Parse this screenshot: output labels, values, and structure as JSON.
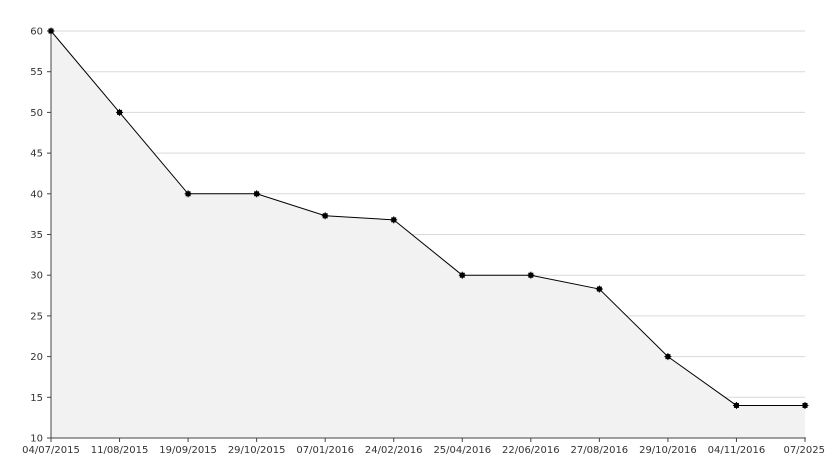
{
  "chart_data": {
    "type": "area",
    "title": "",
    "xlabel": "",
    "ylabel": "",
    "ylim": [
      10,
      60
    ],
    "yticks": [
      10,
      15,
      20,
      25,
      30,
      35,
      40,
      45,
      50,
      55,
      60
    ],
    "xtick_labels": [
      "04/07/2015",
      "11/08/2015",
      "19/09/2015",
      "29/10/2015",
      "07/01/2016",
      "24/02/2016",
      "25/04/2016",
      "22/06/2016",
      "27/08/2016",
      "29/10/2016",
      "04/11/2016",
      "07/2025"
    ],
    "grid": true,
    "legend": "none",
    "series": [
      {
        "values": [
          60,
          50,
          40,
          40,
          37.3,
          36.8,
          30,
          30,
          28.3,
          20,
          14,
          14
        ]
      }
    ],
    "colors": {
      "line": "#000000",
      "area": "#f2f2f2",
      "grid": "#d9d9d9",
      "axis": "#444444",
      "marker": "#000000"
    }
  }
}
